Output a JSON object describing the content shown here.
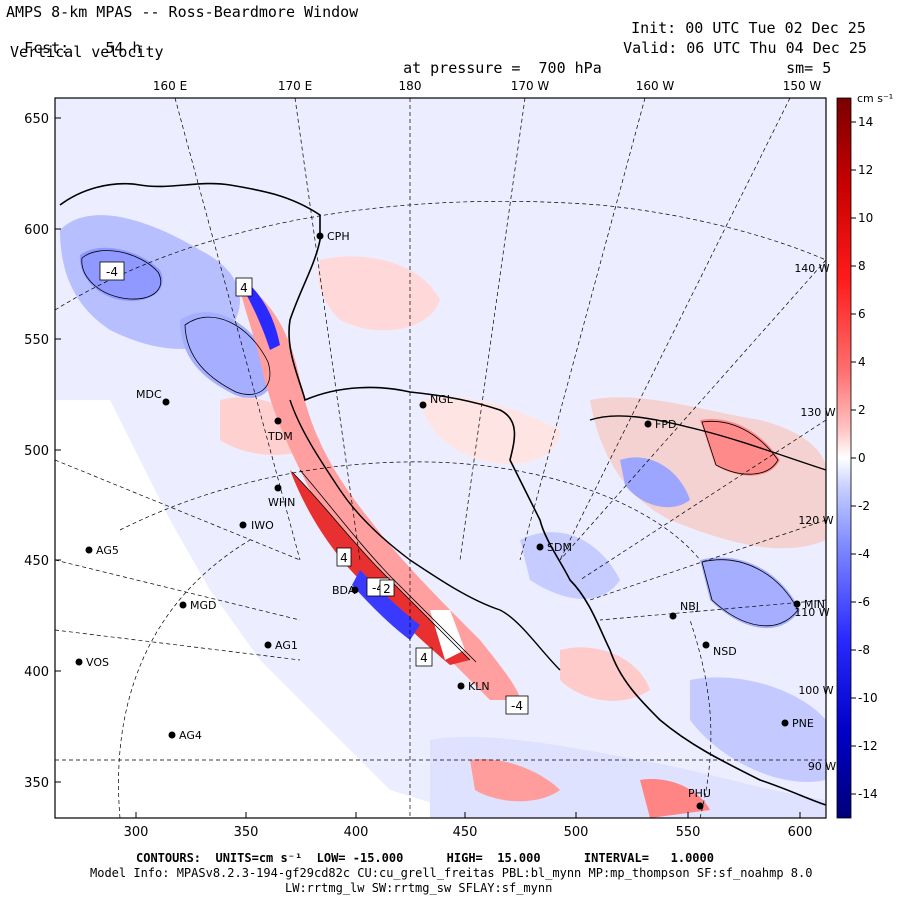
{
  "header": {
    "title": "AMPS 8-km MPAS -- Ross-Beardmore Window",
    "fcst_label": "Fcst:",
    "fcst_value": "54 h",
    "field_name": "Vertical velocity",
    "init_label": "Init:",
    "init_value": "00 UTC Tue 02 Dec 25",
    "valid_label": "Valid:",
    "valid_value": "06 UTC Thu 04 Dec 25",
    "pressure_label": "at pressure =",
    "pressure_value": "700 hPa",
    "smooth_label": "sm=",
    "smooth_value": "5"
  },
  "map": {
    "top_lon_labels": [
      "160 E",
      "170 E",
      "180",
      "170 W",
      "160 W",
      "150 W"
    ],
    "right_lon_labels": [
      "140 W",
      "130 W",
      "120 W",
      "110 W",
      "100 W",
      "90 W"
    ],
    "left_y_ticks": [
      "650",
      "600",
      "550",
      "500",
      "450",
      "400",
      "350"
    ],
    "bottom_x_ticks": [
      "300",
      "350",
      "400",
      "450",
      "500",
      "550",
      "600"
    ],
    "stations": [
      {
        "id": "CPH"
      },
      {
        "id": "NGL"
      },
      {
        "id": "MDC"
      },
      {
        "id": "TDM"
      },
      {
        "id": "WHN"
      },
      {
        "id": "IWO"
      },
      {
        "id": "AG5"
      },
      {
        "id": "SDM"
      },
      {
        "id": "MGD"
      },
      {
        "id": "AG1"
      },
      {
        "id": "VOS"
      },
      {
        "id": "AG4"
      },
      {
        "id": "NBJ"
      },
      {
        "id": "NSD"
      },
      {
        "id": "MIN"
      },
      {
        "id": "PNE"
      },
      {
        "id": "PHU"
      },
      {
        "id": "KLN"
      },
      {
        "id": "FPD"
      },
      {
        "id": "BDA"
      }
    ],
    "extrema_labels": [
      "-4",
      "4",
      "4",
      "-4",
      "4",
      "2",
      "-4"
    ]
  },
  "colorbar": {
    "units": "cm s⁻¹",
    "tick_labels": [
      "14",
      "12",
      "10",
      "8",
      "6",
      "4",
      "2",
      "0",
      "-2",
      "-4",
      "-6",
      "-8",
      "-10",
      "-12",
      "-14"
    ],
    "colors": {
      "dark_red": "#7a0000",
      "red": "#ff1a1a",
      "light_red": "#ff9999",
      "pale_red": "#ffd6d6",
      "white": "#ffffff",
      "pale_blue": "#d6dcff",
      "light_blue": "#9aa4ff",
      "blue": "#2a2aff",
      "dark_blue": "#00007a"
    }
  },
  "footer": {
    "contours_line": "CONTOURS:  UNITS=cm s⁻¹  LOW= -15.000      HIGH=  15.000      INTERVAL=   1.0000",
    "model_info_line": "Model Info: MPASv8.2.3-194-gf29cd82c CU:cu_grell_freitas PBL:bl_mynn MP:mp_thompson SF:sf_noahmp 8.0",
    "physics_line": "LW:rrtmg_lw SW:rrtmg_sw SFLAY:sf_mynn"
  }
}
